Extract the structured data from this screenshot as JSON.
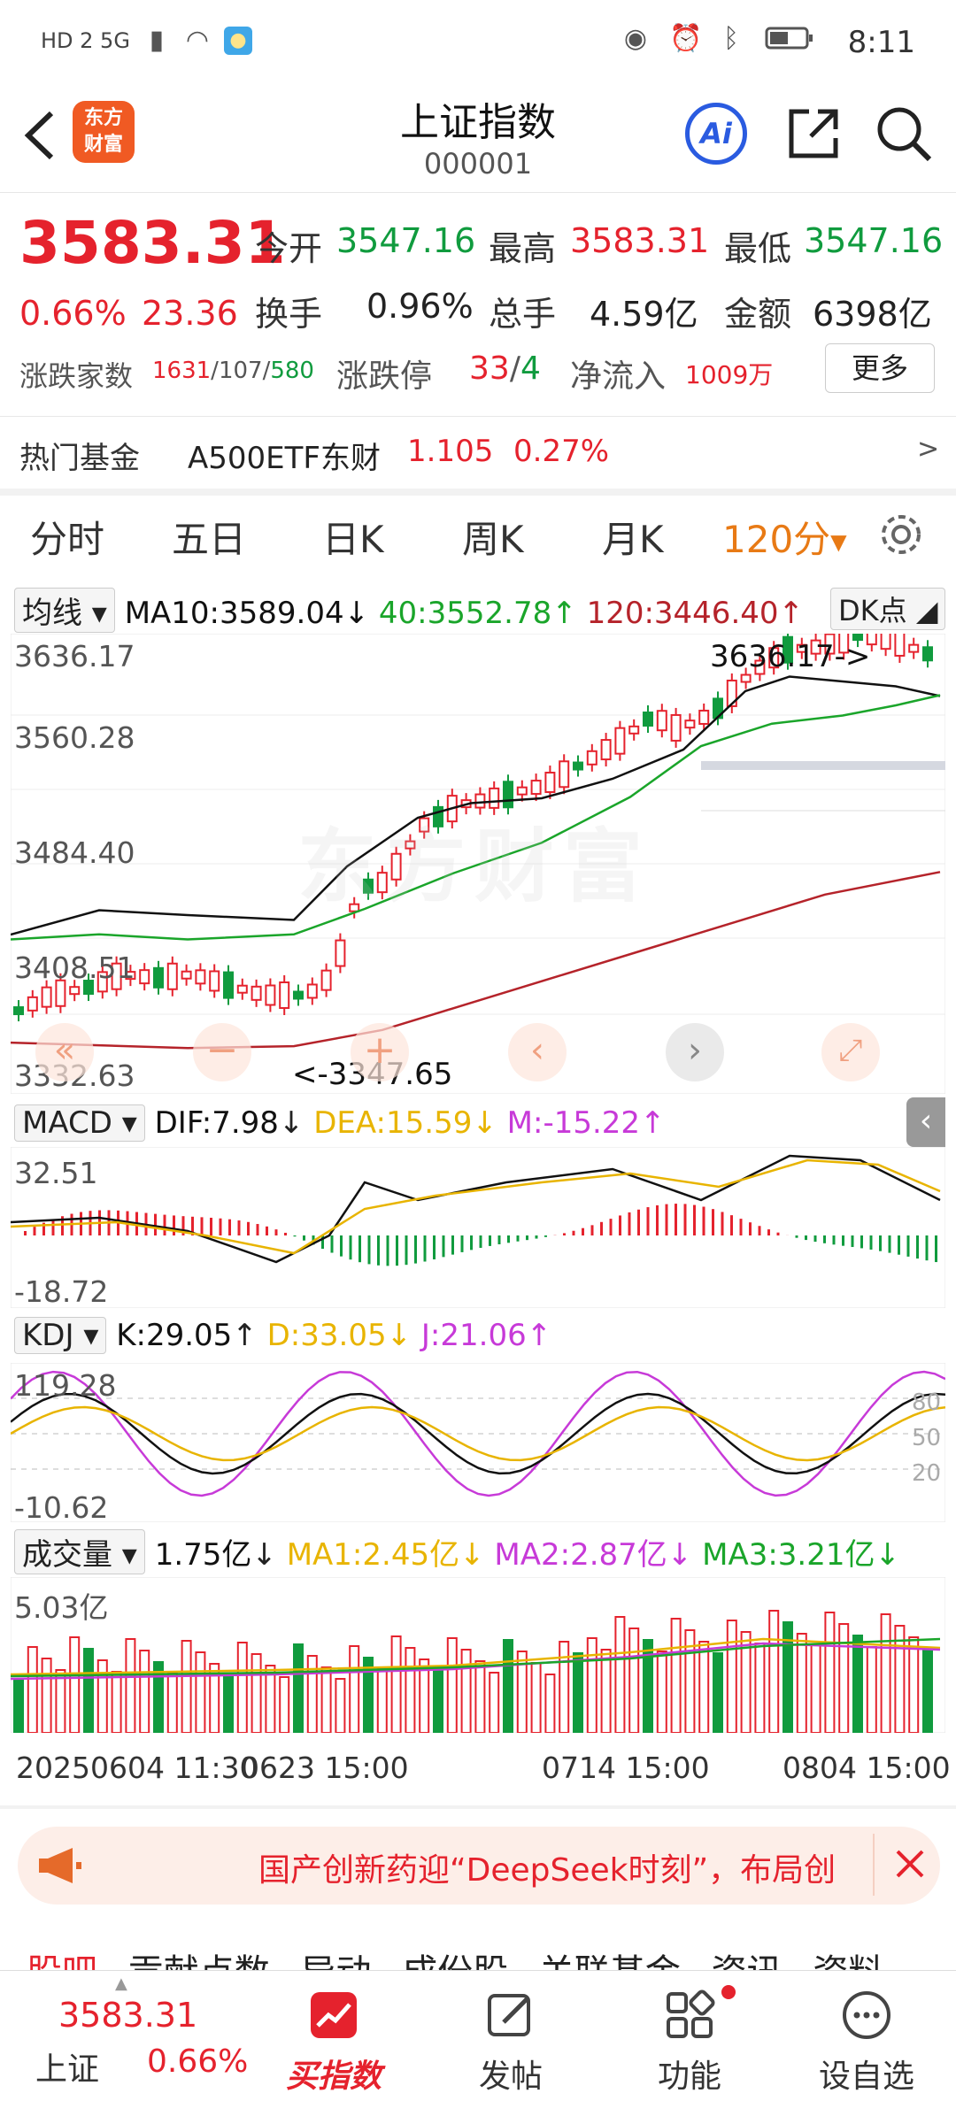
{
  "status_bar": {
    "left_text": "HD 2 5G",
    "time": "8:11"
  },
  "header": {
    "title": "上证指数",
    "code": "000001",
    "logo_text_1": "东方",
    "logo_text_2": "财富",
    "ai_label": "Ai"
  },
  "quote": {
    "price": "3583.31",
    "change_pct": "0.66%",
    "change_amt": "23.36",
    "open_label": "今开",
    "open": "3547.16",
    "high_label": "最高",
    "high": "3583.31",
    "low_label": "最低",
    "low": "3547.16",
    "turnover_label": "换手",
    "turnover": "0.96%",
    "volume_label": "总手",
    "volume": "4.59亿",
    "amount_label": "金额",
    "amount": "6398亿",
    "breadth_label": "涨跌家数",
    "breadth_up": "1631",
    "breadth_flat": "107",
    "breadth_down": "580",
    "sep": "/",
    "limit_label": "涨跌停",
    "limit_up": "33",
    "limit_down": "4",
    "netflow_label": "净流入",
    "netflow": "1009万",
    "more_label": "更多"
  },
  "hot_fund": {
    "label": "热门基金",
    "name": "A500ETF东财",
    "price": "1.105",
    "pct": "0.27%",
    "arrow": ">"
  },
  "tabs": [
    "分时",
    "五日",
    "日K",
    "周K",
    "月K",
    "120分"
  ],
  "tab_active_index": 5,
  "ma_panel": {
    "selector": "均线",
    "ma10": "MA10:3589.04",
    "ma40": "40:3552.78",
    "ma120": "120:3446.40",
    "dk": "DK点",
    "ymax": "3636.17",
    "y2": "3560.28",
    "y3": "3484.40",
    "y4": "3408.51",
    "ymin": "3332.63",
    "high_mark": "3636.17->",
    "low_mark": "<-3347.65",
    "watermark": "东方财富"
  },
  "macd_panel": {
    "selector": "MACD",
    "dif": "DIF:7.98",
    "dea": "DEA:15.59",
    "m": "M:-15.22",
    "ymax": "32.51",
    "ymin": "-18.72"
  },
  "kdj_panel": {
    "selector": "KDJ",
    "k": "K:29.05",
    "d": "D:33.05",
    "j": "J:21.06",
    "ymax": "119.28",
    "ymin": "-10.62",
    "l80": "80",
    "l50": "50",
    "l20": "20"
  },
  "vol_panel": {
    "selector": "成交量",
    "vol": "1.75亿",
    "ma1": "MA1:2.45亿",
    "ma2": "MA2:2.87亿",
    "ma3": "MA3:3.21亿",
    "ymax": "5.03亿"
  },
  "time_axis": {
    "t1": "20250604 11:30",
    "t2": "0623 15:00",
    "t3": "0714 15:00",
    "t4": "0804 15:00"
  },
  "banner": {
    "text": "国产创新药迎“DeepSeek时刻”，布局创"
  },
  "sub_tabs": [
    "股吧",
    "贡献点数",
    "异动",
    "成份股",
    "关联基金",
    "资讯",
    "资料"
  ],
  "bottom_nav": {
    "index_price": "3583.31",
    "index_name": "上证",
    "index_pct": "0.66%",
    "items": [
      "买指数",
      "发帖",
      "功能",
      "设自选"
    ]
  },
  "colors": {
    "up": "#e5222d",
    "down": "#109b3e",
    "accent": "#e87a15",
    "ma10": "#111111",
    "ma40": "#1aa52a",
    "ma120": "#b5232a"
  }
}
